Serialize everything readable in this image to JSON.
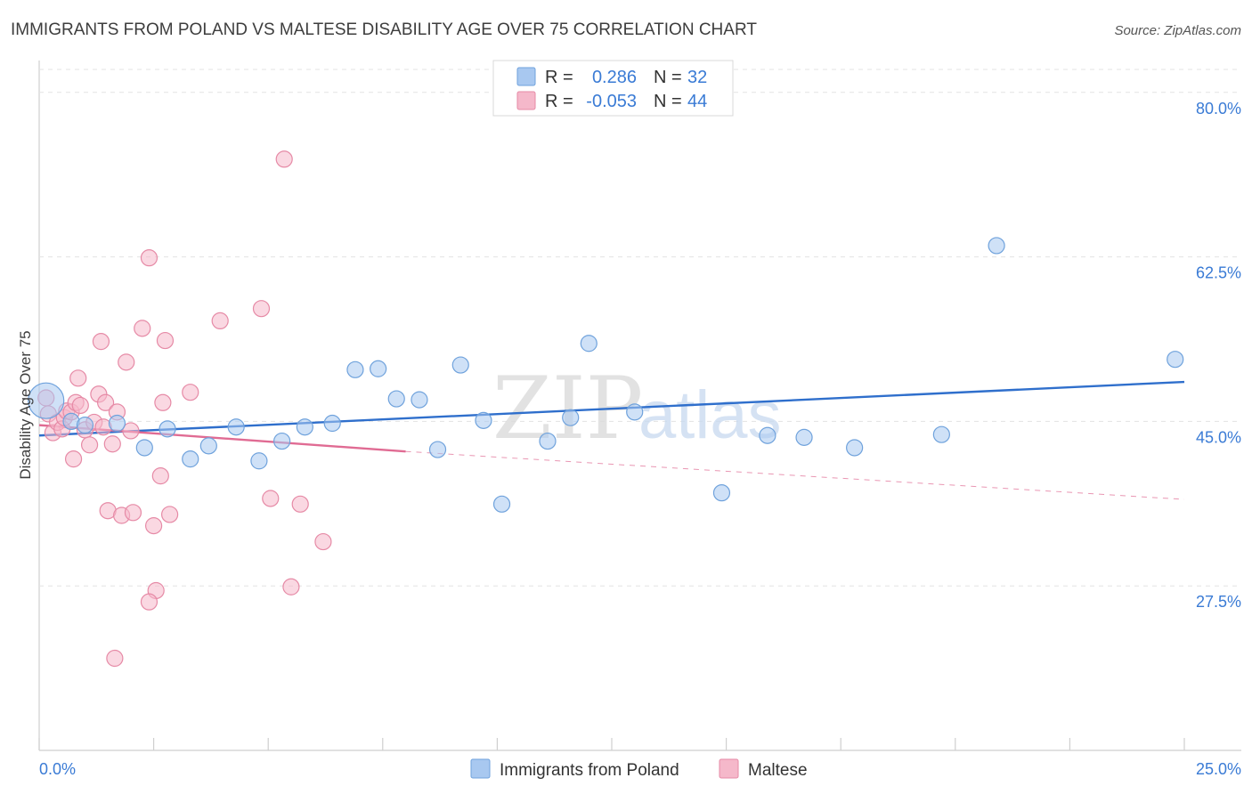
{
  "chart_data": {
    "type": "scatter",
    "title": "IMMIGRANTS FROM POLAND VS MALTESE DISABILITY AGE OVER 75 CORRELATION CHART",
    "source": "Source: ZipAtlas.com",
    "ylabel": "Disability Age Over 75",
    "xlim": [
      0,
      25
    ],
    "ylim": [
      10,
      85
    ],
    "y_ticks": [
      27.5,
      45.0,
      62.5,
      80.0
    ],
    "y_tick_labels": [
      "27.5%",
      "45.0%",
      "62.5%",
      "80.0%"
    ],
    "x_tick_labels": [
      "0.0%",
      "25.0%"
    ],
    "grid": true,
    "watermark": "ZIPatlas",
    "legend": {
      "placement": "top-center",
      "rows": [
        {
          "r_label": "R =",
          "r_value": "0.286",
          "n_label": "N =",
          "n_value": "32",
          "color": "#a8c8f0"
        },
        {
          "r_label": "R =",
          "r_value": "-0.053",
          "n_label": "N =",
          "n_value": "44",
          "color": "#f5b8ca"
        }
      ]
    },
    "series": [
      {
        "name": "Immigrants from Poland",
        "color": "#a8c8f0",
        "stroke": "#6fa2dc",
        "trend_color": "#2f6fcc",
        "trend": {
          "x": [
            0,
            25
          ],
          "y": [
            43.5,
            49.2
          ]
        },
        "points": [
          {
            "x": 0.15,
            "y": 47.2,
            "big": true
          },
          {
            "x": 0.7,
            "y": 45.0
          },
          {
            "x": 1.7,
            "y": 44.8
          },
          {
            "x": 2.3,
            "y": 42.2
          },
          {
            "x": 2.8,
            "y": 44.2
          },
          {
            "x": 3.3,
            "y": 41.0
          },
          {
            "x": 3.7,
            "y": 42.4
          },
          {
            "x": 4.3,
            "y": 44.4
          },
          {
            "x": 4.8,
            "y": 40.8
          },
          {
            "x": 5.3,
            "y": 42.9
          },
          {
            "x": 5.8,
            "y": 44.4
          },
          {
            "x": 6.4,
            "y": 44.8
          },
          {
            "x": 6.9,
            "y": 50.5
          },
          {
            "x": 7.4,
            "y": 50.6
          },
          {
            "x": 7.8,
            "y": 47.4
          },
          {
            "x": 8.3,
            "y": 47.3
          },
          {
            "x": 8.7,
            "y": 42.0
          },
          {
            "x": 9.2,
            "y": 51.0
          },
          {
            "x": 9.7,
            "y": 45.1
          },
          {
            "x": 10.1,
            "y": 36.2
          },
          {
            "x": 11.1,
            "y": 42.9
          },
          {
            "x": 11.6,
            "y": 45.4
          },
          {
            "x": 12.0,
            "y": 53.3
          },
          {
            "x": 13.0,
            "y": 46.0
          },
          {
            "x": 14.9,
            "y": 37.4
          },
          {
            "x": 15.9,
            "y": 43.5
          },
          {
            "x": 16.7,
            "y": 43.3
          },
          {
            "x": 17.8,
            "y": 42.2
          },
          {
            "x": 19.7,
            "y": 43.6
          },
          {
            "x": 20.9,
            "y": 63.7
          },
          {
            "x": 24.8,
            "y": 51.6
          },
          {
            "x": 1.0,
            "y": 44.6
          }
        ]
      },
      {
        "name": "Maltese",
        "color": "#f5b8ca",
        "stroke": "#e68aa6",
        "trend_color": "#e06b93",
        "trend": {
          "x": [
            0,
            8.0
          ],
          "y": [
            44.6,
            41.8
          ]
        },
        "trend_dashed": {
          "x": [
            8.0,
            25
          ],
          "y": [
            41.8,
            36.7
          ]
        },
        "points": [
          {
            "x": 0.15,
            "y": 47.5
          },
          {
            "x": 0.2,
            "y": 45.8
          },
          {
            "x": 0.3,
            "y": 43.8
          },
          {
            "x": 0.4,
            "y": 44.9
          },
          {
            "x": 0.5,
            "y": 44.2
          },
          {
            "x": 0.55,
            "y": 45.4
          },
          {
            "x": 0.6,
            "y": 46.1
          },
          {
            "x": 0.7,
            "y": 46.0
          },
          {
            "x": 0.8,
            "y": 47.0
          },
          {
            "x": 0.75,
            "y": 41.0
          },
          {
            "x": 0.85,
            "y": 49.6
          },
          {
            "x": 0.9,
            "y": 46.7
          },
          {
            "x": 1.0,
            "y": 44.1
          },
          {
            "x": 1.1,
            "y": 42.5
          },
          {
            "x": 1.2,
            "y": 44.9
          },
          {
            "x": 1.3,
            "y": 47.9
          },
          {
            "x": 1.35,
            "y": 53.5
          },
          {
            "x": 1.45,
            "y": 47.0
          },
          {
            "x": 1.5,
            "y": 35.5
          },
          {
            "x": 1.6,
            "y": 42.6
          },
          {
            "x": 1.7,
            "y": 46.0
          },
          {
            "x": 1.8,
            "y": 35.0
          },
          {
            "x": 1.9,
            "y": 51.3
          },
          {
            "x": 2.0,
            "y": 44.0
          },
          {
            "x": 2.05,
            "y": 35.3
          },
          {
            "x": 2.25,
            "y": 54.9
          },
          {
            "x": 2.4,
            "y": 62.4
          },
          {
            "x": 2.5,
            "y": 33.9
          },
          {
            "x": 2.55,
            "y": 27.0
          },
          {
            "x": 2.65,
            "y": 39.2
          },
          {
            "x": 2.7,
            "y": 47.0
          },
          {
            "x": 2.75,
            "y": 53.6
          },
          {
            "x": 2.85,
            "y": 35.1
          },
          {
            "x": 3.3,
            "y": 48.1
          },
          {
            "x": 3.95,
            "y": 55.7
          },
          {
            "x": 4.85,
            "y": 57.0
          },
          {
            "x": 5.05,
            "y": 36.8
          },
          {
            "x": 5.35,
            "y": 72.9
          },
          {
            "x": 5.5,
            "y": 27.4
          },
          {
            "x": 5.7,
            "y": 36.2
          },
          {
            "x": 6.2,
            "y": 32.2
          },
          {
            "x": 1.65,
            "y": 19.8
          },
          {
            "x": 2.4,
            "y": 25.8
          },
          {
            "x": 1.4,
            "y": 44.4
          }
        ]
      }
    ]
  }
}
